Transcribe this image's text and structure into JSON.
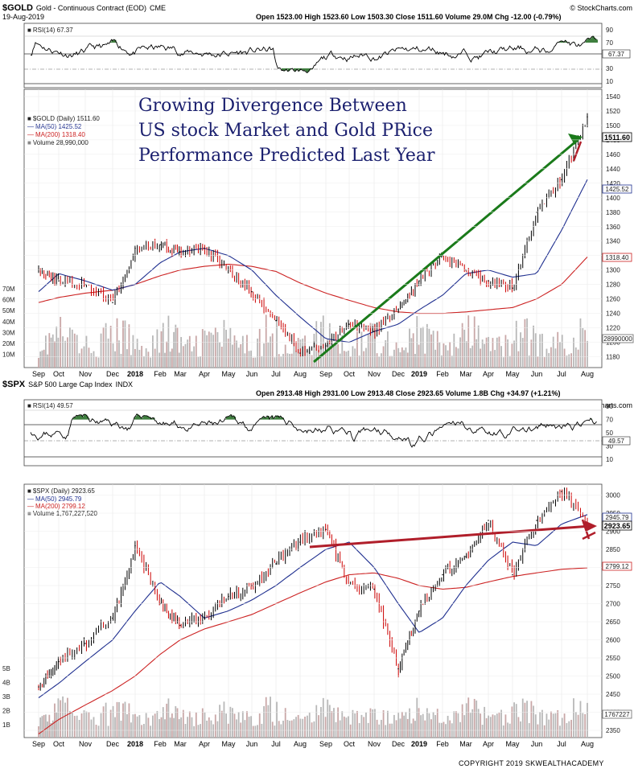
{
  "gold": {
    "symbol": "$GOLD",
    "name": "Gold - Continuous Contract (EOD)",
    "exchange": "CME",
    "date": "19-Aug-2019",
    "ohlc": "Open 1523.00 High 1523.60 Low 1503.30 Close 1511.60 Volume 29.0M Chg -12.00 (-0.79%)",
    "brand": "© StockCharts.com",
    "rsi_label": "RSI(14) 67.37",
    "rsi_value_tag": "67.37",
    "rsi_ticks": [
      "90",
      "70",
      "50",
      "30",
      "10"
    ],
    "legend": [
      "$GOLD (Daily) 1511.60",
      "MA(50) 1425.52",
      "MA(200) 1318.40",
      "Volume 28,990,000"
    ],
    "price_ticks": [
      "1540",
      "1520",
      "1500",
      "1480",
      "1460",
      "1440",
      "1420",
      "1400",
      "1380",
      "1360",
      "1340",
      "1320",
      "1300",
      "1280",
      "1260",
      "1240",
      "1220",
      "1200",
      "1180"
    ],
    "vol_ticks": [
      "70M",
      "60M",
      "50M",
      "40M",
      "30M",
      "20M",
      "10M"
    ],
    "tags": {
      "close": "1511.60",
      "ma50": "1425.52",
      "ma200": "1318.40",
      "volume": "28990000"
    },
    "x_labels": [
      "Sep",
      "Oct",
      "Nov",
      "Dec",
      "2018",
      "Feb",
      "Mar",
      "Apr",
      "May",
      "Jun",
      "Jul",
      "Aug",
      "Sep",
      "Oct",
      "Nov",
      "Dec",
      "2019",
      "Feb",
      "Mar",
      "Apr",
      "May",
      "Jun",
      "Jul",
      "Aug"
    ]
  },
  "spx": {
    "symbol": "$SPX",
    "name": "S&P 500 Large Cap Index",
    "exchange": "INDX",
    "date": "19-Aug-2019",
    "ohlc": "Open 2913.48 High 2931.00 Low 2913.48 Close 2923.65 Volume 1.8B Chg +34.97 (+1.21%)",
    "brand": "© StockCharts.com",
    "rsi_label": "RSI(14) 49.57",
    "rsi_value_tag": "49.57",
    "rsi_ticks": [
      "90",
      "70",
      "50",
      "30",
      "10"
    ],
    "legend": [
      "$SPX (Daily) 2923.65",
      "MA(50) 2945.79",
      "MA(200) 2799.12",
      "Volume 1,767,227,520"
    ],
    "price_ticks": [
      "3000",
      "2950",
      "2900",
      "2850",
      "2800",
      "2750",
      "2700",
      "2650",
      "2600",
      "2550",
      "2500",
      "2450",
      "2400",
      "2350"
    ],
    "vol_ticks": [
      "5B",
      "4B",
      "3B",
      "2B",
      "1B"
    ],
    "tags": {
      "ma50": "2945.79",
      "close": "2923.65",
      "ma200": "2799.12",
      "volume": "1767227"
    },
    "x_labels": [
      "Sep",
      "Oct",
      "Nov",
      "Dec",
      "2018",
      "Feb",
      "Mar",
      "Apr",
      "May",
      "Jun",
      "Jul",
      "Aug",
      "Sep",
      "Oct",
      "Nov",
      "Dec",
      "2019",
      "Feb",
      "Mar",
      "Apr",
      "May",
      "Jun",
      "Jul",
      "Aug"
    ]
  },
  "annotation": {
    "lines": [
      "Growing Divergence Between",
      "US stock Market and Gold PRice",
      "Performance Predicted Last Year"
    ]
  },
  "copyright": "COPYRIGHT 2019 SKWEALTHACADEMY",
  "colors": {
    "price": "#111111",
    "up": "#000000",
    "down": "#cc0000",
    "ma50": "#1f2f8f",
    "ma200": "#cc2222",
    "volume": "#b8b8b8",
    "rsi_fill": "#3f7f3f",
    "trend_gold": "#1a7a1a",
    "trend_spx": "#b01e2a",
    "annotation": "#1a1f6e"
  },
  "chart_data": [
    {
      "type": "line",
      "title": "$GOLD (Daily) 1511.60",
      "x": [
        "2017-09",
        "2017-10",
        "2017-11",
        "2017-12",
        "2018-01",
        "2018-02",
        "2018-03",
        "2018-04",
        "2018-05",
        "2018-06",
        "2018-07",
        "2018-08",
        "2018-09",
        "2018-10",
        "2018-11",
        "2018-12",
        "2019-01",
        "2019-02",
        "2019-03",
        "2019-04",
        "2019-05",
        "2019-06",
        "2019-07",
        "2019-08"
      ],
      "series": [
        {
          "name": "$GOLD (Daily) 1511.60",
          "values": [
            1300,
            1285,
            1280,
            1255,
            1330,
            1335,
            1325,
            1330,
            1300,
            1270,
            1230,
            1185,
            1195,
            1225,
            1215,
            1245,
            1285,
            1320,
            1300,
            1285,
            1275,
            1380,
            1425,
            1512
          ]
        },
        {
          "name": "MA(50) 1425.52",
          "values": [
            1270,
            1295,
            1285,
            1272,
            1280,
            1310,
            1325,
            1330,
            1320,
            1300,
            1265,
            1235,
            1205,
            1200,
            1215,
            1225,
            1245,
            1265,
            1295,
            1300,
            1290,
            1295,
            1355,
            1425
          ]
        },
        {
          "name": "MA(200) 1318.40",
          "values": [
            1255,
            1262,
            1268,
            1272,
            1280,
            1292,
            1300,
            1305,
            1308,
            1305,
            1298,
            1282,
            1268,
            1258,
            1248,
            1242,
            1240,
            1240,
            1242,
            1245,
            1248,
            1260,
            1280,
            1318
          ]
        }
      ],
      "ylim": [
        1165,
        1550
      ]
    },
    {
      "type": "line",
      "title": "$SPX (Daily) 2923.65",
      "x": [
        "2017-09",
        "2017-10",
        "2017-11",
        "2017-12",
        "2018-01",
        "2018-02",
        "2018-03",
        "2018-04",
        "2018-05",
        "2018-06",
        "2018-07",
        "2018-08",
        "2018-09",
        "2018-10",
        "2018-11",
        "2018-12",
        "2019-01",
        "2019-02",
        "2019-03",
        "2019-04",
        "2019-05",
        "2019-06",
        "2019-07",
        "2019-08"
      ],
      "series": [
        {
          "name": "$SPX (Daily) 2923.65",
          "values": [
            2470,
            2540,
            2590,
            2660,
            2860,
            2700,
            2640,
            2660,
            2720,
            2750,
            2810,
            2870,
            2905,
            2750,
            2740,
            2520,
            2680,
            2780,
            2830,
            2930,
            2780,
            2930,
            3010,
            2924
          ]
        },
        {
          "name": "MA(50) 2945.79",
          "values": [
            2440,
            2480,
            2540,
            2600,
            2680,
            2760,
            2720,
            2660,
            2680,
            2710,
            2750,
            2800,
            2850,
            2870,
            2800,
            2700,
            2620,
            2660,
            2750,
            2820,
            2870,
            2860,
            2920,
            2946
          ]
        },
        {
          "name": "MA(200) 2799.12",
          "values": [
            2340,
            2380,
            2420,
            2460,
            2500,
            2560,
            2600,
            2630,
            2650,
            2670,
            2700,
            2730,
            2760,
            2780,
            2785,
            2770,
            2750,
            2740,
            2745,
            2760,
            2775,
            2785,
            2795,
            2799
          ]
        }
      ],
      "ylim": [
        2330,
        3030
      ]
    }
  ]
}
